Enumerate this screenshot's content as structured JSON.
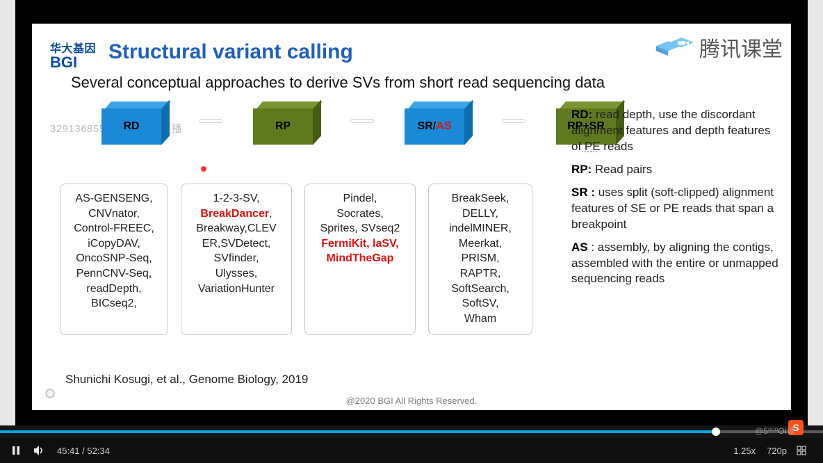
{
  "slide": {
    "logo_ch": "华大基因",
    "logo_en": "BGI",
    "title": "Structural variant calling",
    "subtitle": "Several conceptual approaches to derive SVs from short read sequencing data",
    "ghost_text": "32913685541正在观看直播",
    "cubes": [
      {
        "label": "RD",
        "color": "blue"
      },
      {
        "label": "RP",
        "color": "green"
      },
      {
        "label_html": "SR/<span class='hl'>AS</span>",
        "color": "blue"
      },
      {
        "label": "RP+SR",
        "color": "green",
        "dots": "……"
      }
    ],
    "boxes": [
      {
        "lines": [
          "AS-GENSENG,",
          "CNVnator,",
          "Control-FREEC,",
          "iCopyDAV,",
          "OncoSNP-Seq,",
          "PennCNV-Seq,",
          "readDepth,",
          "BICseq2,"
        ]
      },
      {
        "lines": [
          "1-2-3-SV,",
          "<b class='hl'>BreakDancer</b>,",
          "Breakway,CLEV",
          "ER,SVDetect,",
          "SVfinder,",
          "Ulysses,",
          "VariationHunter"
        ]
      },
      {
        "lines": [
          "Pindel,",
          "Socrates,",
          "Sprites, SVseq2",
          "<span class='hl'>FermiKit, laSV,</span>",
          "<span class='hl'>MindTheGap</span>"
        ]
      },
      {
        "lines": [
          "BreakSeek,",
          "DELLY,",
          "indelMINER,",
          "Meerkat,",
          "PRISM,",
          "RAPTR,",
          "SoftSearch,",
          "SoftSV,",
          "Wham"
        ]
      }
    ],
    "defs": [
      {
        "k": "RD:",
        "v": "  read depth, use the discordant alignment features and depth features of PE reads"
      },
      {
        "k": "RP:",
        "v": " Read pairs"
      },
      {
        "k": "SR :",
        "v": " uses split (soft-clipped) alignment features of SE or PE reads that span a breakpoint"
      },
      {
        "k": " AS",
        "v": " : assembly, by aligning the contigs, assembled with the entire or unmapped sequencing reads"
      }
    ],
    "citation": "Shunichi Kosugi, et al., Genome Biology, 2019",
    "copyright": "@2020 BGI All Rights Reserved.",
    "watermark": "腾讯课堂"
  },
  "player": {
    "buffer_pct": 100,
    "played_pct": 87,
    "current": "45:41",
    "duration": "52:34",
    "speed": "1.25x",
    "quality": "720p",
    "corner_wm": "@5⁰⁰⁰OI读"
  }
}
